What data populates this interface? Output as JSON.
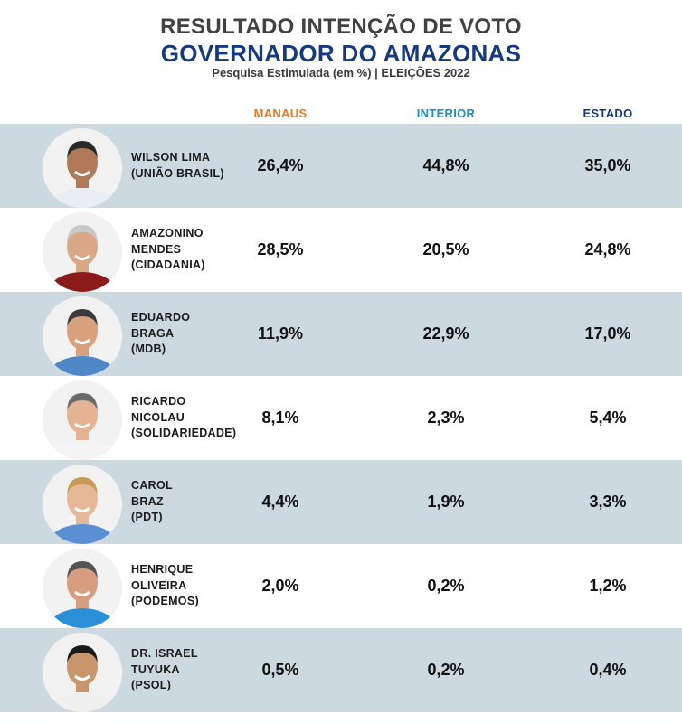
{
  "header": {
    "title_line1": "RESULTADO INTENÇÃO DE VOTO",
    "title_line2": "GOVERNADOR DO AMAZONAS",
    "subtitle": "Pesquisa Estimulada (em %) | ELEIÇÕES 2022"
  },
  "columns": {
    "manaus": "MANAUS",
    "interior": "INTERIOR",
    "estado": "ESTADO"
  },
  "colors": {
    "manaus_header": "#e87722",
    "interior_header": "#1b8fc4",
    "estado_header": "#163a7c",
    "row_shade": "#cdd9e1",
    "title_blue": "#163a7c"
  },
  "chart_data": {
    "type": "table",
    "title": "RESULTADO INTENÇÃO DE VOTO",
    "subtitle": "GOVERNADOR DO AMAZONAS",
    "columns": [
      "MANAUS",
      "INTERIOR",
      "ESTADO"
    ],
    "rows": [
      {
        "name": "WILSON LIMA\n(UNIÃO BRASIL)",
        "manaus": "26,4%",
        "interior": "44,8%",
        "estado": "35,0%"
      },
      {
        "name": "AMAZONINO\nMENDES\n(CIDADANIA)",
        "manaus": "28,5%",
        "interior": "20,5%",
        "estado": "24,8%"
      },
      {
        "name": "EDUARDO\nBRAGA\n(MDB)",
        "manaus": "11,9%",
        "interior": "22,9%",
        "estado": "17,0%"
      },
      {
        "name": "RICARDO\nNICOLAU\n(SOLIDARIEDADE)",
        "manaus": "8,1%",
        "interior": "2,3%",
        "estado": "5,4%"
      },
      {
        "name": "CAROL\nBRAZ\n(PDT)",
        "manaus": "4,4%",
        "interior": "1,9%",
        "estado": "3,3%"
      },
      {
        "name": "HENRIQUE\nOLIVEIRA\n(PODEMOS)",
        "manaus": "2,0%",
        "interior": "0,2%",
        "estado": "1,2%"
      },
      {
        "name": "DR. ISRAEL\nTUYUKA\n(PSOL)",
        "manaus": "0,5%",
        "interior": "0,2%",
        "estado": "0,4%"
      }
    ]
  }
}
